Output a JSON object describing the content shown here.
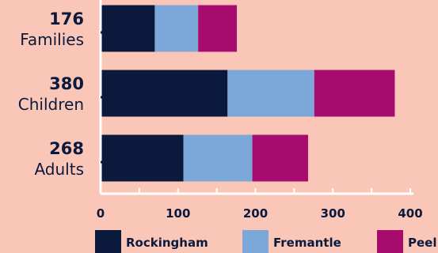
{
  "chart_data": {
    "type": "bar",
    "orientation": "horizontal",
    "stacked": true,
    "title": "",
    "xlabel": "",
    "ylabel": "",
    "categories": [
      {
        "total": "176",
        "name": "Families"
      },
      {
        "total": "380",
        "name": "Children"
      },
      {
        "total": "268",
        "name": "Adults"
      }
    ],
    "series": [
      {
        "name": "Rockingham",
        "color": "#0B1A3C",
        "values": [
          70,
          164,
          107
        ]
      },
      {
        "name": "Fremantle",
        "color": "#7BA7D9",
        "values": [
          56,
          112,
          89
        ]
      },
      {
        "name": "Peel",
        "color": "#A80B6E",
        "values": [
          50,
          104,
          72
        ]
      }
    ],
    "xlim": [
      0,
      400
    ],
    "xticks": [
      "0",
      "100",
      "200",
      "300",
      "400"
    ],
    "grid": false,
    "legend": "bottom"
  }
}
